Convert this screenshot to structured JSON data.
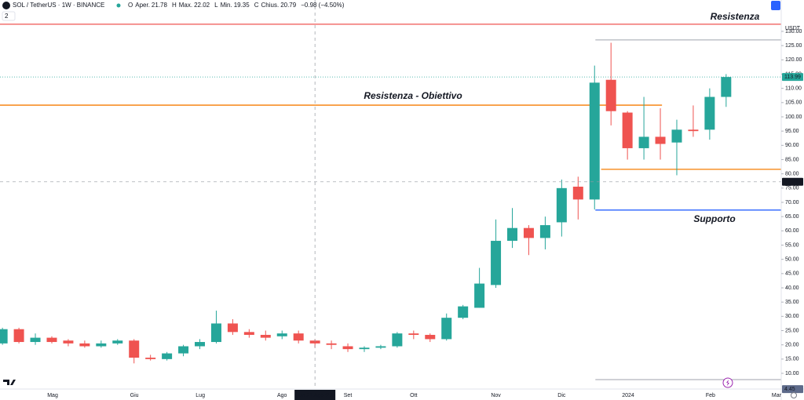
{
  "chart_data": {
    "type": "candlestick",
    "header": {
      "symbol": "SOL / TetherUS · 1W · BINANCE",
      "ohlc": [
        {
          "key": "O",
          "name": "Aper.",
          "value": 21.78
        },
        {
          "key": "H",
          "name": "Max.",
          "value": 22.02
        },
        {
          "key": "L",
          "name": "Min.",
          "value": 19.35
        },
        {
          "key": "C",
          "name": "Chius.",
          "value": 20.79
        }
      ],
      "change": "−0.98 (−4.50%)",
      "intervals": 2,
      "currency": "USDT"
    },
    "x": [
      0,
      1,
      2,
      3,
      4,
      5,
      6,
      7,
      8,
      9,
      10,
      11,
      12,
      13,
      14,
      15,
      16,
      17,
      18,
      19,
      20,
      21,
      22,
      23,
      24,
      25,
      26,
      27,
      28,
      29,
      30,
      31,
      32,
      33,
      34,
      35,
      36,
      37,
      38,
      39,
      40,
      41,
      42,
      43,
      44
    ],
    "open": [
      20.5,
      25.5,
      21,
      22.5,
      21.5,
      20.5,
      19.5,
      20.5,
      21.5,
      15.5,
      15,
      17,
      19.5,
      21,
      27.5,
      24.5,
      23.5,
      23,
      24,
      21.5,
      20.5,
      19.5,
      18.5,
      19,
      19.5,
      24,
      23.5,
      22,
      29.5,
      33,
      41,
      56.5,
      61,
      57.5,
      63,
      75.5,
      71,
      113,
      101.5,
      89,
      93,
      91,
      95.5,
      95.5,
      107
    ],
    "high": [
      26,
      26,
      24,
      23,
      22,
      21.5,
      21.5,
      22,
      22,
      16.5,
      17.5,
      20,
      22,
      32,
      29,
      25.5,
      25,
      25,
      25,
      22,
      21.5,
      20.5,
      19.5,
      20,
      24.5,
      25,
      24,
      31,
      34,
      47,
      64,
      68,
      62,
      65,
      78,
      79,
      118,
      126,
      102,
      107,
      103,
      99,
      104,
      110,
      115
    ],
    "low": [
      20,
      20.5,
      20,
      20.5,
      19.5,
      19,
      19,
      20,
      13.5,
      14.5,
      14.5,
      16,
      18.5,
      20.5,
      23.5,
      22.5,
      21.5,
      22,
      20.5,
      19,
      18.5,
      17.5,
      17.5,
      18.5,
      19,
      22,
      21,
      21.5,
      29,
      33,
      40,
      54,
      51.5,
      53.5,
      58,
      64,
      67.5,
      97,
      85,
      85,
      85,
      79.5,
      93,
      92,
      103.5
    ],
    "close": [
      25.5,
      21,
      22.5,
      21,
      20.5,
      19.5,
      20.5,
      21.5,
      15.5,
      15,
      17,
      19.5,
      21,
      27.5,
      24.5,
      23.5,
      22.5,
      24,
      21.5,
      20.5,
      20,
      18.5,
      19,
      19.5,
      24,
      23.5,
      22,
      29.5,
      33.5,
      41.5,
      56.5,
      61,
      57.5,
      62,
      75,
      71,
      112,
      102,
      89,
      93,
      90.5,
      95.5,
      95,
      107,
      113.99
    ],
    "up_color": "#26a69a",
    "down_color": "#ef5350",
    "xlim": [
      -0.15,
      47.35
    ],
    "xticks": [
      {
        "value": 3.05,
        "label": "Mag"
      },
      {
        "value": 8.02,
        "label": "Giu"
      },
      {
        "value": 12.03,
        "label": "Lug"
      },
      {
        "value": 17,
        "label": "Ago"
      },
      {
        "value": 21,
        "label": "Set"
      },
      {
        "value": 25,
        "label": "Ott"
      },
      {
        "value": 30,
        "label": "Nov"
      },
      {
        "value": 34,
        "label": "Dic"
      },
      {
        "value": 38.04,
        "label": "2024"
      },
      {
        "value": 43.05,
        "label": "Feb"
      },
      {
        "value": 47.06,
        "label": "Mar"
      }
    ],
    "ylim": [
      4.5,
      141
    ],
    "yticks": [
      {
        "value": 10,
        "label": "10.00"
      },
      {
        "value": 15,
        "label": "15.00"
      },
      {
        "value": 20,
        "label": "20.00"
      },
      {
        "value": 25,
        "label": "25.00"
      },
      {
        "value": 30,
        "label": "30.00"
      },
      {
        "value": 35,
        "label": "35.00"
      },
      {
        "value": 40,
        "label": "40.00"
      },
      {
        "value": 45,
        "label": "45.00"
      },
      {
        "value": 50,
        "label": "50.00"
      },
      {
        "value": 55,
        "label": "55.00"
      },
      {
        "value": 60,
        "label": "60.00"
      },
      {
        "value": 65,
        "label": "65.00"
      },
      {
        "value": 70,
        "label": "70.00"
      },
      {
        "value": 75,
        "label": "75.00"
      },
      {
        "value": 80,
        "label": "80.00"
      },
      {
        "value": 85,
        "label": "85.00"
      },
      {
        "value": 90,
        "label": "90.00"
      },
      {
        "value": 95,
        "label": "95.00"
      },
      {
        "value": 100,
        "label": "100.00"
      },
      {
        "value": 105,
        "label": "105.00"
      },
      {
        "value": 110,
        "label": "110.00"
      },
      {
        "value": 115,
        "label": "115.00"
      },
      {
        "value": 120,
        "label": "120.00"
      },
      {
        "value": 125,
        "label": "125.00"
      },
      {
        "value": 130,
        "label": "130.00"
      }
    ],
    "grid": true,
    "levels": [
      {
        "label": "Resistenza",
        "value": 132.5,
        "x": [
          -0.15,
          47.35
        ],
        "color": "#ef5350"
      },
      {
        "label": "Resistenza - Obiettivo",
        "value": 104.1,
        "x": [
          -0.15,
          40.1
        ],
        "color": "#f57c00",
        "label_color": "#26c6da"
      },
      {
        "value": 127,
        "x": [
          36.05,
          47.35
        ],
        "color": "#b2b5be"
      },
      {
        "value": 81.6,
        "x": [
          36.4,
          47.35
        ],
        "color": "#f57c00"
      },
      {
        "label": "Supporto",
        "value": 67.3,
        "x": [
          36.05,
          47.35
        ],
        "color": "#2962ff",
        "label_color": "#3f51b5"
      },
      {
        "value": 7.8,
        "x": [
          36.05,
          47.35
        ],
        "color": "#b2b5be"
      }
    ],
    "last_price": {
      "value": 113.99,
      "color": "#26a69a"
    },
    "crosshair": {
      "x": 19,
      "x_label": "lun 21 Ago '23",
      "y": 77.21
    },
    "low_marker": {
      "value": 4.45,
      "color": "#5d6a8a"
    }
  }
}
